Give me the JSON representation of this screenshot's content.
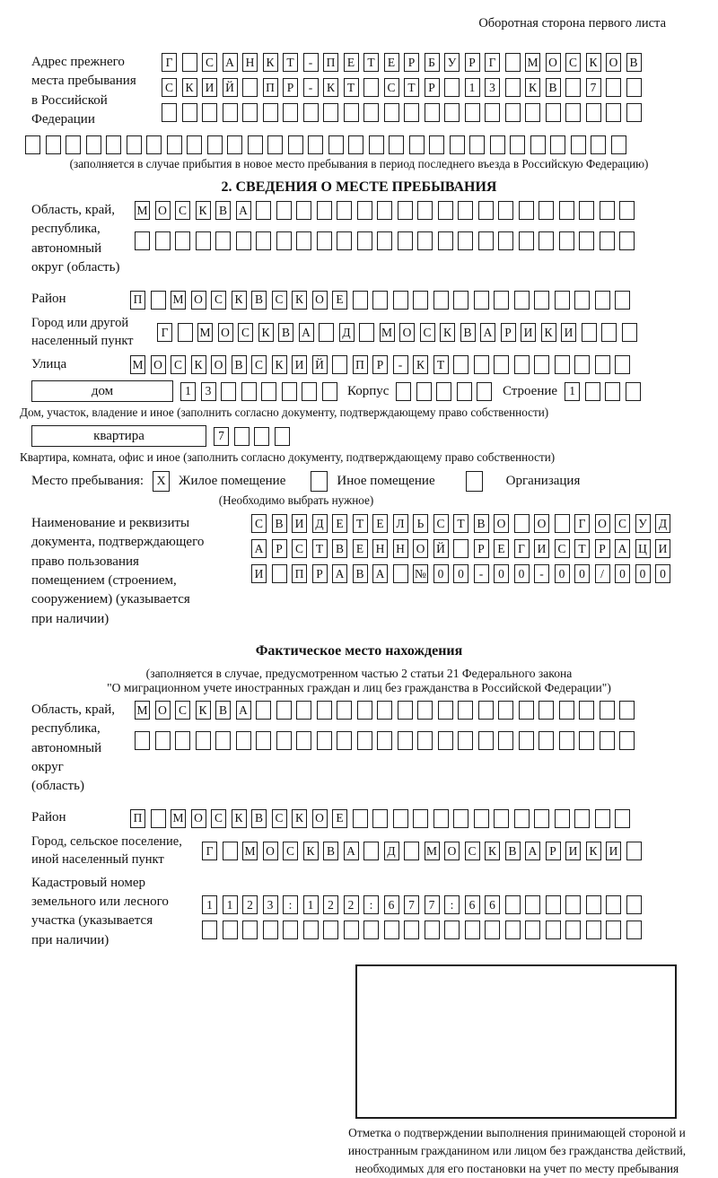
{
  "page": {
    "header_note": "Оборотная сторона первого листа"
  },
  "prev_address": {
    "label": "Адрес прежнего\nместа пребывания\nв Российской\nФедерации",
    "rows": [
      [
        "Г",
        "",
        "С",
        "А",
        "Н",
        "К",
        "Т",
        "-",
        "П",
        "Е",
        "Т",
        "Е",
        "Р",
        "Б",
        "У",
        "Р",
        "Г",
        "",
        "М",
        "О",
        "С",
        "К",
        "О",
        "В"
      ],
      [
        "С",
        "К",
        "И",
        "Й",
        "",
        "П",
        "Р",
        "-",
        "К",
        "Т",
        "",
        "С",
        "Т",
        "Р",
        "",
        "1",
        "3",
        "",
        "К",
        "В",
        "",
        "7",
        "",
        ""
      ],
      [
        "",
        "",
        "",
        "",
        "",
        "",
        "",
        "",
        "",
        "",
        "",
        "",
        "",
        "",
        "",
        "",
        "",
        "",
        "",
        "",
        "",
        "",
        "",
        ""
      ]
    ],
    "full_row": [
      "",
      "",
      "",
      "",
      "",
      "",
      "",
      "",
      "",
      "",
      "",
      "",
      "",
      "",
      "",
      "",
      "",
      "",
      "",
      "",
      "",
      "",
      "",
      "",
      "",
      "",
      "",
      "",
      "",
      ""
    ],
    "note": "(заполняется в случае прибытия в новое место пребывания в период последнего въезда в Российскую Федерацию)"
  },
  "section2": {
    "title": "2. СВЕДЕНИЯ О МЕСТЕ ПРЕБЫВАНИЯ",
    "oblast": {
      "label": "Область, край,\nреспублика,\nавтономный\nокруг (область)",
      "rows": [
        [
          "М",
          "О",
          "С",
          "К",
          "В",
          "А",
          "",
          "",
          "",
          "",
          "",
          "",
          "",
          "",
          "",
          "",
          "",
          "",
          "",
          "",
          "",
          "",
          "",
          "",
          ""
        ],
        [
          "",
          "",
          "",
          "",
          "",
          "",
          "",
          "",
          "",
          "",
          "",
          "",
          "",
          "",
          "",
          "",
          "",
          "",
          "",
          "",
          "",
          "",
          "",
          "",
          ""
        ]
      ]
    },
    "raion": {
      "label": "Район",
      "cells": [
        "П",
        "",
        "М",
        "О",
        "С",
        "К",
        "В",
        "С",
        "К",
        "О",
        "Е",
        "",
        "",
        "",
        "",
        "",
        "",
        "",
        "",
        "",
        "",
        "",
        "",
        "",
        ""
      ]
    },
    "gorod": {
      "label": "Город или другой\nнаселенный пункт",
      "cells": [
        "Г",
        "",
        "М",
        "О",
        "С",
        "К",
        "В",
        "А",
        "",
        "Д",
        "",
        "М",
        "О",
        "С",
        "К",
        "В",
        "А",
        "Р",
        "И",
        "К",
        "И",
        "",
        "",
        ""
      ]
    },
    "ulitsa": {
      "label": "Улица",
      "cells": [
        "М",
        "О",
        "С",
        "К",
        "О",
        "В",
        "С",
        "К",
        "И",
        "Й",
        "",
        "П",
        "Р",
        "-",
        "К",
        "Т",
        "",
        "",
        "",
        "",
        "",
        "",
        "",
        "",
        ""
      ]
    },
    "dom": {
      "label": "дом",
      "cells": [
        "1",
        "3",
        "",
        "",
        "",
        "",
        "",
        ""
      ],
      "korpus_label": "Корпус",
      "korpus_cells": [
        "",
        "",
        "",
        "",
        ""
      ],
      "stroenie_label": "Строение",
      "stroenie_cells": [
        "1",
        "",
        "",
        ""
      ],
      "note": "Дом, участок, владение и иное (заполнить согласно документу, подтверждающему право собственности)"
    },
    "kvartira": {
      "label": "квартира",
      "cells": [
        "7",
        "",
        "",
        ""
      ],
      "note": "Квартира, комната, офис и иное (заполнить согласно документу, подтверждающему право собственности)"
    },
    "place_type": {
      "label": "Место пребывания:",
      "options": [
        {
          "label": "Жилое помещение",
          "mark": "X"
        },
        {
          "label": "Иное помещение",
          "mark": ""
        },
        {
          "label": "Организация",
          "mark": ""
        }
      ],
      "note": "(Необходимо выбрать нужное)"
    },
    "document": {
      "label": "Наименование и реквизиты\nдокумента, подтверждающего\nправо пользования\nпомещением (строением,\nсооружением) (указывается\nпри наличии)",
      "rows": [
        [
          "С",
          "В",
          "И",
          "Д",
          "Е",
          "Т",
          "Е",
          "Л",
          "Ь",
          "С",
          "Т",
          "В",
          "О",
          "",
          "О",
          "",
          "Г",
          "О",
          "С",
          "У",
          "Д"
        ],
        [
          "А",
          "Р",
          "С",
          "Т",
          "В",
          "Е",
          "Н",
          "Н",
          "О",
          "Й",
          "",
          "Р",
          "Е",
          "Г",
          "И",
          "С",
          "Т",
          "Р",
          "А",
          "Ц",
          "И"
        ],
        [
          "И",
          "",
          "П",
          "Р",
          "А",
          "В",
          "А",
          "",
          "№",
          "0",
          "0",
          "-",
          "0",
          "0",
          "-",
          "0",
          "0",
          "/",
          "0",
          "0",
          "0"
        ]
      ]
    }
  },
  "actual_location": {
    "title": "Фактическое место нахождения",
    "note1": "(заполняется в случае, предусмотренном частью 2 статьи 21 Федерального закона",
    "note2": "\"О миграционном учете иностранных граждан и лиц без гражданства в Российской Федерации\")",
    "oblast": {
      "label": "Область, край,\nреспублика,\nавтономный округ\n(область)",
      "rows": [
        [
          "М",
          "О",
          "С",
          "К",
          "В",
          "А",
          "",
          "",
          "",
          "",
          "",
          "",
          "",
          "",
          "",
          "",
          "",
          "",
          "",
          "",
          "",
          "",
          "",
          "",
          ""
        ],
        [
          "",
          "",
          "",
          "",
          "",
          "",
          "",
          "",
          "",
          "",
          "",
          "",
          "",
          "",
          "",
          "",
          "",
          "",
          "",
          "",
          "",
          "",
          "",
          "",
          ""
        ]
      ]
    },
    "raion": {
      "label": "Район",
      "cells": [
        "П",
        "",
        "М",
        "О",
        "С",
        "К",
        "В",
        "С",
        "К",
        "О",
        "Е",
        "",
        "",
        "",
        "",
        "",
        "",
        "",
        "",
        "",
        "",
        "",
        "",
        "",
        ""
      ]
    },
    "gorod": {
      "label": "Город, сельское поселение,\nиной населенный пункт",
      "cells": [
        "Г",
        "",
        "М",
        "О",
        "С",
        "К",
        "В",
        "А",
        "",
        "Д",
        "",
        "М",
        "О",
        "С",
        "К",
        "В",
        "А",
        "Р",
        "И",
        "К",
        "И",
        ""
      ]
    },
    "cadastral": {
      "label": "Кадастровый номер\nземельного или лесного\nучастка (указывается\nпри наличии)",
      "rows": [
        [
          "1",
          "1",
          "2",
          "3",
          ":",
          "1",
          "2",
          "2",
          ":",
          "6",
          "7",
          "7",
          ":",
          "6",
          "6",
          "",
          "",
          "",
          "",
          "",
          "",
          ""
        ],
        [
          "",
          "",
          "",
          "",
          "",
          "",
          "",
          "",
          "",
          "",
          "",
          "",
          "",
          "",
          "",
          "",
          "",
          "",
          "",
          "",
          "",
          ""
        ]
      ]
    },
    "stamp_caption": "Отметка о подтверждении выполнения принимающей стороной и иностранным гражданином или лицом без гражданства действий, необходимых для его постановки на учет по месту пребывания"
  }
}
